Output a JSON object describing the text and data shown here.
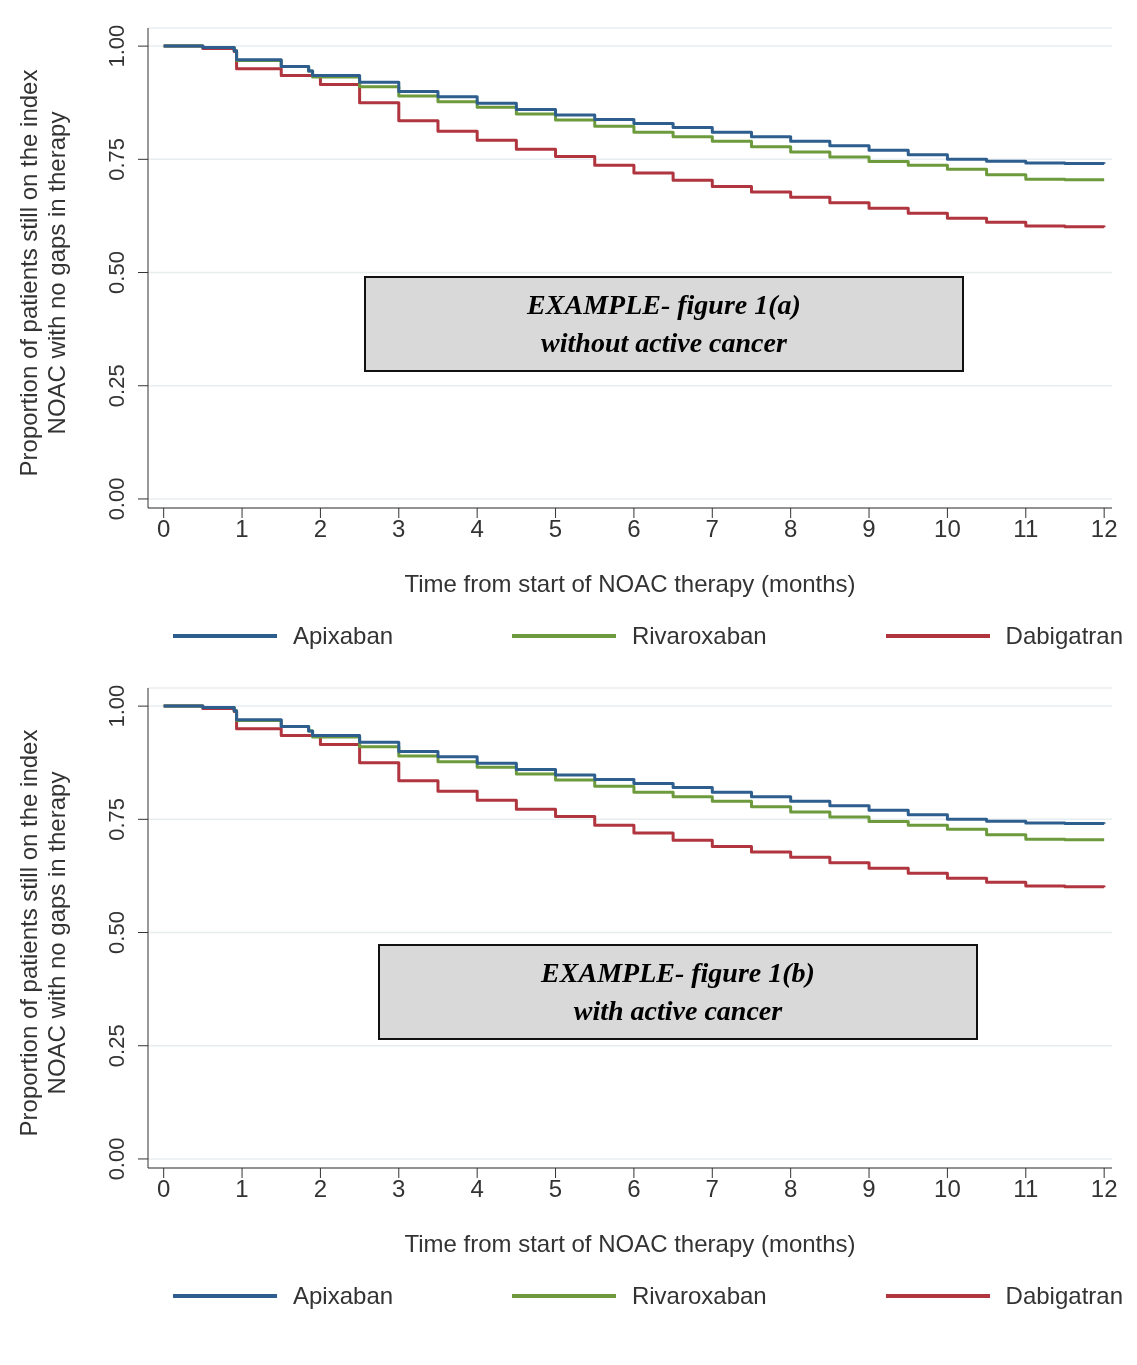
{
  "chart_data": [
    {
      "type": "step",
      "xlabel": "Time from start of NOAC therapy (months)",
      "ylabel": "Proportion of patients still on the index NOAC with no gaps in therapy",
      "annotations": [
        "EXAMPLE- figure 1(a)",
        "without active cancer"
      ],
      "xlim": [
        -0.2,
        12.1
      ],
      "xticks": [
        0,
        1,
        2,
        3,
        4,
        5,
        6,
        7,
        8,
        9,
        10,
        11,
        12
      ],
      "ylim": [
        -0.02,
        1.04
      ],
      "yticks": [
        {
          "value": 0,
          "label": "0.00"
        },
        {
          "value": 0.25,
          "label": "0.25"
        },
        {
          "value": 0.5,
          "label": "0.50"
        },
        {
          "value": 0.75,
          "label": "0.75"
        },
        {
          "value": 1,
          "label": "1.00"
        }
      ],
      "grid": "y",
      "legend": "bottom",
      "line_style": "solid",
      "marker": "none",
      "series": [
        {
          "name": "Apixaban",
          "color": "#2e5e8e",
          "x": [
            0,
            0.5,
            0.9,
            0.93,
            1.5,
            1.85,
            1.9,
            2.5,
            3,
            3.5,
            4,
            4.5,
            5,
            5.5,
            6,
            6.5,
            7,
            7.5,
            8,
            8.5,
            9,
            9.5,
            10,
            10.5,
            11,
            11.5,
            12
          ],
          "values": [
            1,
            0.997,
            0.99,
            0.97,
            0.955,
            0.945,
            0.935,
            0.92,
            0.9,
            0.888,
            0.874,
            0.86,
            0.848,
            0.838,
            0.829,
            0.82,
            0.81,
            0.8,
            0.79,
            0.78,
            0.77,
            0.76,
            0.75,
            0.746,
            0.742,
            0.741,
            0.74
          ]
        },
        {
          "name": "Rivaroxaban",
          "color": "#6d9a3c",
          "x": [
            0,
            0.5,
            0.9,
            0.93,
            1.5,
            1.85,
            1.9,
            2.5,
            3,
            3.5,
            4,
            4.5,
            5,
            5.5,
            6,
            6.5,
            7,
            7.5,
            8,
            8.5,
            9,
            9.5,
            10,
            10.5,
            11,
            11.5,
            12
          ],
          "values": [
            1,
            0.997,
            0.99,
            0.968,
            0.955,
            0.945,
            0.932,
            0.91,
            0.89,
            0.877,
            0.865,
            0.85,
            0.837,
            0.823,
            0.81,
            0.8,
            0.79,
            0.778,
            0.766,
            0.755,
            0.745,
            0.737,
            0.728,
            0.716,
            0.706,
            0.705,
            0.705
          ]
        },
        {
          "name": "Dabigatran",
          "color": "#b0353f",
          "x": [
            0,
            0.5,
            0.9,
            0.93,
            1.5,
            2,
            2.5,
            3,
            3.5,
            4,
            4.5,
            5,
            5.5,
            6,
            6.5,
            7,
            7.5,
            8,
            8.5,
            9,
            9.5,
            10,
            10.5,
            11,
            11.5,
            12
          ],
          "values": [
            1,
            0.995,
            0.988,
            0.95,
            0.935,
            0.915,
            0.875,
            0.835,
            0.812,
            0.792,
            0.772,
            0.756,
            0.737,
            0.72,
            0.704,
            0.69,
            0.678,
            0.666,
            0.654,
            0.642,
            0.631,
            0.62,
            0.611,
            0.603,
            0.601,
            0.6
          ]
        }
      ]
    },
    {
      "type": "step",
      "xlabel": "Time from start of NOAC therapy (months)",
      "ylabel": "Proportion of patients still on the index NOAC with no gaps in therapy",
      "annotations": [
        "EXAMPLE- figure 1(b)",
        "with active cancer"
      ],
      "xlim": [
        -0.2,
        12.1
      ],
      "xticks": [
        0,
        1,
        2,
        3,
        4,
        5,
        6,
        7,
        8,
        9,
        10,
        11,
        12
      ],
      "ylim": [
        -0.02,
        1.04
      ],
      "yticks": [
        {
          "value": 0,
          "label": "0.00"
        },
        {
          "value": 0.25,
          "label": "0.25"
        },
        {
          "value": 0.5,
          "label": "0.50"
        },
        {
          "value": 0.75,
          "label": "0.75"
        },
        {
          "value": 1,
          "label": "1.00"
        }
      ],
      "grid": "y",
      "legend": "bottom",
      "line_style": "solid",
      "marker": "none",
      "series": [
        {
          "name": "Apixaban",
          "color": "#2e5e8e",
          "x": [
            0,
            0.5,
            0.9,
            0.93,
            1.5,
            1.85,
            1.9,
            2.5,
            3,
            3.5,
            4,
            4.5,
            5,
            5.5,
            6,
            6.5,
            7,
            7.5,
            8,
            8.5,
            9,
            9.5,
            10,
            10.5,
            11,
            11.5,
            12
          ],
          "values": [
            1,
            0.997,
            0.99,
            0.97,
            0.955,
            0.945,
            0.935,
            0.92,
            0.9,
            0.888,
            0.874,
            0.86,
            0.848,
            0.838,
            0.829,
            0.82,
            0.81,
            0.8,
            0.79,
            0.78,
            0.77,
            0.76,
            0.75,
            0.746,
            0.742,
            0.741,
            0.74
          ]
        },
        {
          "name": "Rivaroxaban",
          "color": "#6d9a3c",
          "x": [
            0,
            0.5,
            0.9,
            0.93,
            1.5,
            1.85,
            1.9,
            2.5,
            3,
            3.5,
            4,
            4.5,
            5,
            5.5,
            6,
            6.5,
            7,
            7.5,
            8,
            8.5,
            9,
            9.5,
            10,
            10.5,
            11,
            11.5,
            12
          ],
          "values": [
            1,
            0.997,
            0.99,
            0.968,
            0.955,
            0.945,
            0.932,
            0.91,
            0.89,
            0.877,
            0.865,
            0.85,
            0.837,
            0.823,
            0.81,
            0.8,
            0.79,
            0.778,
            0.766,
            0.755,
            0.745,
            0.737,
            0.728,
            0.716,
            0.706,
            0.705,
            0.705
          ]
        },
        {
          "name": "Dabigatran",
          "color": "#b0353f",
          "x": [
            0,
            0.5,
            0.9,
            0.93,
            1.5,
            2,
            2.5,
            3,
            3.5,
            4,
            4.5,
            5,
            5.5,
            6,
            6.5,
            7,
            7.5,
            8,
            8.5,
            9,
            9.5,
            10,
            10.5,
            11,
            11.5,
            12
          ],
          "values": [
            1,
            0.995,
            0.988,
            0.95,
            0.935,
            0.915,
            0.875,
            0.835,
            0.812,
            0.792,
            0.772,
            0.756,
            0.737,
            0.72,
            0.704,
            0.69,
            0.678,
            0.666,
            0.654,
            0.642,
            0.631,
            0.62,
            0.611,
            0.603,
            0.601,
            0.6
          ]
        }
      ]
    }
  ]
}
